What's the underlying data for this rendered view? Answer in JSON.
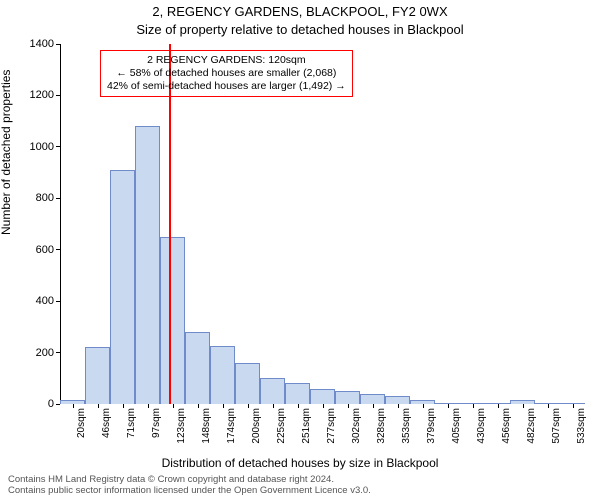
{
  "title": "2, REGENCY GARDENS, BLACKPOOL, FY2 0WX",
  "subtitle": "Size of property relative to detached houses in Blackpool",
  "ylabel": "Number of detached properties",
  "xlabel": "Distribution of detached houses by size in Blackpool",
  "footer_line1": "Contains HM Land Registry data © Crown copyright and database right 2024.",
  "footer_line2": "Contains public sector information licensed under the Open Government Licence v3.0.",
  "chart": {
    "type": "histogram",
    "background_color": "#ffffff",
    "bar_fill": "#c9d9f0",
    "bar_border": "#6f8bc9",
    "bar_border_width": 1,
    "marker_color": "#ff0000",
    "callout_border": "#ff0000",
    "ylim": [
      0,
      1400
    ],
    "ytick_step": 200,
    "yticks": [
      0,
      200,
      400,
      600,
      800,
      1000,
      1200,
      1400
    ],
    "categories": [
      "20sqm",
      "46sqm",
      "71sqm",
      "97sqm",
      "123sqm",
      "148sqm",
      "174sqm",
      "200sqm",
      "225sqm",
      "251sqm",
      "277sqm",
      "302sqm",
      "328sqm",
      "353sqm",
      "379sqm",
      "405sqm",
      "430sqm",
      "456sqm",
      "482sqm",
      "507sqm",
      "533sqm"
    ],
    "values": [
      15,
      220,
      910,
      1080,
      650,
      280,
      225,
      160,
      100,
      80,
      60,
      50,
      40,
      30,
      15,
      3,
      3,
      3,
      15,
      2,
      2
    ],
    "bar_width_ratio": 1.0,
    "marker_value": 120,
    "marker_bin_index": 4,
    "marker_offset_in_bin": -0.1,
    "callout": {
      "line1": "2 REGENCY GARDENS: 120sqm",
      "line2": "← 58% of detached houses are smaller (2,068)",
      "line3": "42% of semi-detached houses are larger (1,492) →"
    },
    "label_fontsize": 11,
    "title_fontsize": 13
  }
}
